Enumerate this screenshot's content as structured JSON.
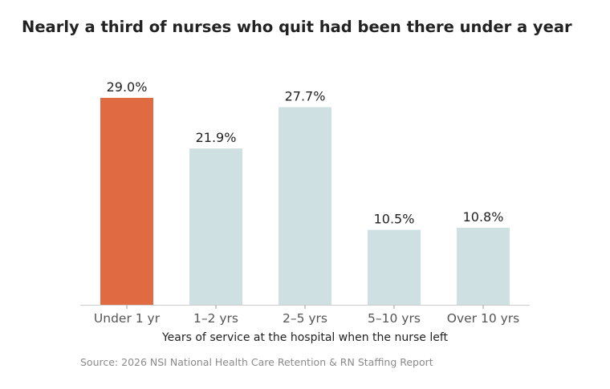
{
  "chart_data": {
    "type": "bar",
    "title": "Nearly a third of nurses who quit had been there under a year",
    "categories": [
      "Under 1 yr",
      "1–2 yrs",
      "2–5 yrs",
      "5–10 yrs",
      "Over 10 yrs"
    ],
    "values": [
      29.0,
      21.9,
      27.7,
      10.5,
      10.8
    ],
    "data_labels": [
      "29.0%",
      "21.9%",
      "27.7%",
      "10.5%",
      "10.8%"
    ],
    "highlight_index": 0,
    "xlabel": "Years of service at the hospital when the nurse left",
    "ylabel": "",
    "ylim": [
      0,
      29.0
    ],
    "grid": false,
    "source": "Source: 2026 NSI National Health Care Retention & RN Staffing Report"
  },
  "colors": {
    "highlight": "#e06a42",
    "bar": "#cfe0e2",
    "title": "#222222",
    "label": "#222222",
    "tick": "#555555",
    "axis": "#cccccc",
    "source": "#8a8a8a"
  }
}
